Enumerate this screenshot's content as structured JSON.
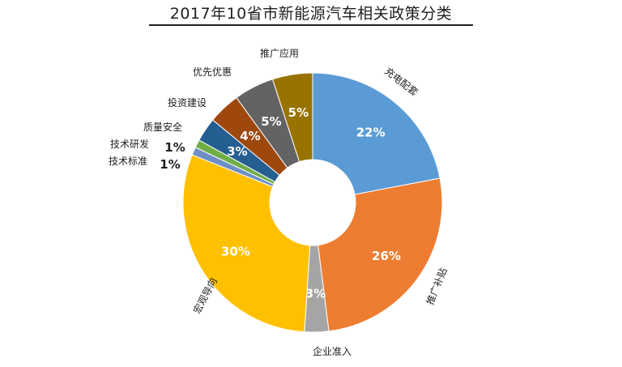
{
  "chart_data": {
    "type": "pie",
    "variant": "donut",
    "title": "2017年10省市新能源汽车相关政策分类",
    "slices": [
      {
        "label": "充电配套",
        "value": 22,
        "display": "22%",
        "color": "#5B9BD5"
      },
      {
        "label": "推广补贴",
        "value": 26,
        "display": "26%",
        "color": "#ED7D31"
      },
      {
        "label": "企业准入",
        "value": 3,
        "display": "3%",
        "color": "#A5A5A5"
      },
      {
        "label": "宏观导向",
        "value": 30,
        "display": "30%",
        "color": "#FFC000"
      },
      {
        "label": "技术标准",
        "value": 1,
        "display": "1%",
        "color": "#6E8FC6"
      },
      {
        "label": "技术研发",
        "value": 1,
        "display": "1%",
        "color": "#70AD47"
      },
      {
        "label": "质量安全",
        "value": 3,
        "display": "3%",
        "color": "#255E91"
      },
      {
        "label": "投资建设",
        "value": 4,
        "display": "4%",
        "color": "#9E480E"
      },
      {
        "label": "优先优惠",
        "value": 5,
        "display": "5%",
        "color": "#636363"
      },
      {
        "label": "推广应用",
        "value": 5,
        "display": "5%",
        "color": "#997300"
      }
    ]
  }
}
